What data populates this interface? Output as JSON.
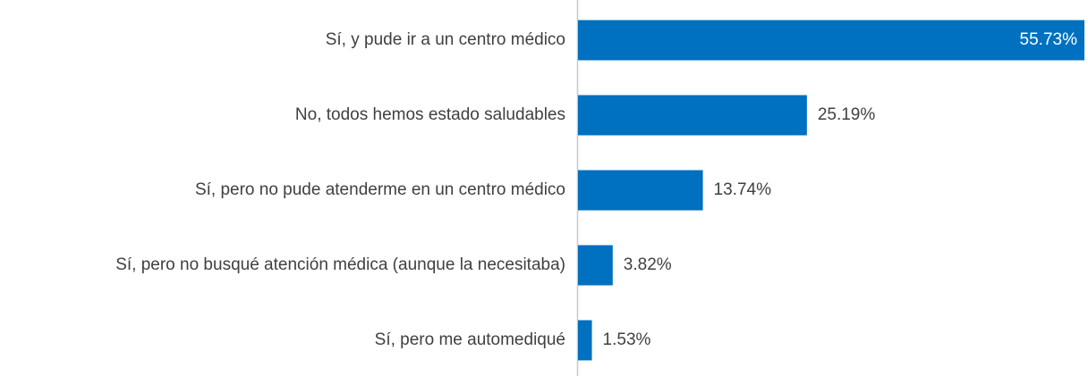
{
  "chart_data": {
    "type": "bar",
    "orientation": "horizontal",
    "categories": [
      "Sí, y pude ir a un centro médico",
      "No, todos hemos estado saludables",
      "Sí, pero no pude atenderme en un centro médico",
      "Sí, pero no busqué atención médica (aunque la necesitaba)",
      "Sí, pero me automediqué"
    ],
    "values": [
      55.73,
      25.19,
      13.74,
      3.82,
      1.53
    ],
    "value_labels": [
      "55.73%",
      "25.19%",
      "13.74%",
      "3.82%",
      "1.53%"
    ],
    "color": "#0070c0"
  }
}
